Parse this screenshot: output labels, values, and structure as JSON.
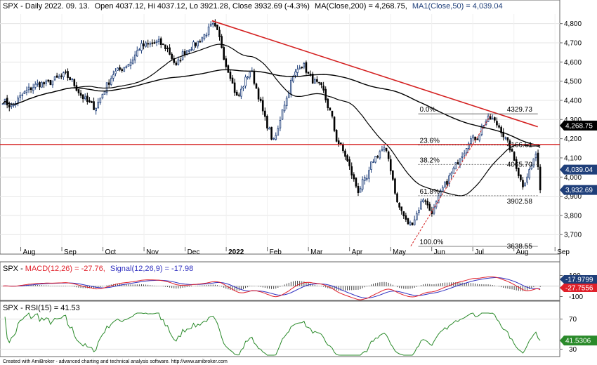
{
  "chart_data": [
    {
      "type": "candlestick",
      "symbol": "SPX",
      "header": {
        "prefix": "SPX - Daily 2022. 09. 13.",
        "ohlc": "Open 4037.12, Hi 4037.12, Lo 3921.28, Close 3932.69 (-4.3%)",
        "ma200": "MA(Close,200) = 4,268.75,",
        "ma50": "MA1(Close,50) = 4,039.04"
      },
      "x_labels": [
        "Aug",
        "Sep",
        "Oct",
        "Nov",
        "Dec",
        "2022",
        "Feb",
        "Mar",
        "Apr",
        "May",
        "Jun",
        "Jul",
        "Aug",
        "Sep"
      ],
      "y_ticks": [
        "4,800",
        "4,700",
        "4,600",
        "4,500",
        "4,400",
        "4,300",
        "4,200",
        "4,100",
        "4,000",
        "3,900",
        "3,800",
        "3,700"
      ],
      "ylim": [
        3635,
        4850
      ],
      "price_path": [
        [
          0,
          4400
        ],
        [
          6,
          4365
        ],
        [
          12,
          4420
        ],
        [
          18,
          4462
        ],
        [
          24,
          4485
        ],
        [
          30,
          4487
        ],
        [
          36,
          4513
        ],
        [
          42,
          4534
        ],
        [
          46,
          4505
        ],
        [
          52,
          4430
        ],
        [
          56,
          4395
        ],
        [
          62,
          4360
        ],
        [
          68,
          4455
        ],
        [
          74,
          4540
        ],
        [
          80,
          4568
        ],
        [
          86,
          4604
        ],
        [
          92,
          4682
        ],
        [
          98,
          4690
        ],
        [
          104,
          4705
        ],
        [
          110,
          4670
        ],
        [
          114,
          4610
        ],
        [
          116,
          4575
        ],
        [
          120,
          4640
        ],
        [
          124,
          4668
        ],
        [
          130,
          4700
        ],
        [
          136,
          4749
        ],
        [
          140,
          4793
        ],
        [
          143,
          4766
        ],
        [
          146,
          4700
        ],
        [
          149,
          4590
        ],
        [
          152,
          4540
        ],
        [
          154,
          4475
        ],
        [
          157,
          4410
        ],
        [
          160,
          4460
        ],
        [
          163,
          4520
        ],
        [
          166,
          4560
        ],
        [
          169,
          4480
        ],
        [
          172,
          4400
        ],
        [
          175,
          4310
        ],
        [
          178,
          4250
        ],
        [
          181,
          4180
        ],
        [
          184,
          4240
        ],
        [
          187,
          4360
        ],
        [
          190,
          4410
        ],
        [
          193,
          4500
        ],
        [
          196,
          4545
        ],
        [
          199,
          4590
        ],
        [
          202,
          4575
        ],
        [
          205,
          4525
        ],
        [
          208,
          4500
        ],
        [
          211,
          4480
        ],
        [
          214,
          4460
        ],
        [
          217,
          4380
        ],
        [
          220,
          4320
        ],
        [
          223,
          4200
        ],
        [
          226,
          4160
        ],
        [
          229,
          4115
        ],
        [
          232,
          4050
        ],
        [
          235,
          3980
        ],
        [
          238,
          3925
        ],
        [
          241,
          3975
        ],
        [
          244,
          3990
        ],
        [
          247,
          4080
        ],
        [
          250,
          4110
        ],
        [
          253,
          4140
        ],
        [
          255,
          4148
        ],
        [
          258,
          4100
        ],
        [
          261,
          3990
        ],
        [
          264,
          3860
        ],
        [
          267,
          3820
        ],
        [
          270,
          3765
        ],
        [
          273,
          3755
        ],
        [
          276,
          3790
        ],
        [
          279,
          3850
        ],
        [
          282,
          3900
        ],
        [
          285,
          3830
        ],
        [
          288,
          3820
        ],
        [
          291,
          3880
        ],
        [
          294,
          3935
        ],
        [
          297,
          3975
        ],
        [
          300,
          4015
        ],
        [
          303,
          4060
        ],
        [
          306,
          4110
        ],
        [
          309,
          4140
        ],
        [
          312,
          4195
        ],
        [
          315,
          4200
        ],
        [
          318,
          4210
        ],
        [
          321,
          4270
        ],
        [
          324,
          4300
        ],
        [
          327,
          4305
        ],
        [
          330,
          4280
        ],
        [
          333,
          4255
        ],
        [
          336,
          4200
        ],
        [
          339,
          4160
        ],
        [
          342,
          4090
        ],
        [
          344,
          4050
        ],
        [
          346,
          3990
        ],
        [
          348,
          3960
        ],
        [
          351,
          4010
        ],
        [
          354,
          4065
        ],
        [
          356,
          4115
        ],
        [
          358,
          4080
        ],
        [
          360,
          3932
        ]
      ],
      "ma200": "MA(Close,200)",
      "ma50": "MA1(Close,50)",
      "fibonacci": [
        {
          "ratio": "0.0%",
          "price": "4329.73"
        },
        {
          "ratio": "23.6%",
          "price": "4166.61"
        },
        {
          "ratio": "38.2%",
          "price": "4065.70"
        },
        {
          "ratio": "61.8%",
          "price": "3902.58"
        },
        {
          "ratio": "100.0%",
          "price": "3638.55"
        }
      ],
      "horizontal_line": 4170,
      "price_tags": [
        {
          "label": "4,268.75",
          "color": "#000000"
        },
        {
          "label": "4,039.04",
          "color": "#1f3f7a"
        },
        {
          "label": "3,932.69",
          "color": "#1f3f7a"
        }
      ]
    },
    {
      "type": "line",
      "name": "MACD",
      "title": {
        "prefix": "SPX - ",
        "macd": "MACD(12,26) = -27.76,",
        "signal": "Signal(12,26,9) = -17.98"
      },
      "y_ticks": [
        "100",
        "-100"
      ],
      "ylim": [
        -130,
        130
      ],
      "tags": [
        {
          "label": "-17.9799",
          "color": "#1f3f7a"
        },
        {
          "label": "-27.7556",
          "color": "#e0202a"
        }
      ]
    },
    {
      "type": "line",
      "name": "RSI",
      "title": "SPX - RSI(15) = 41.53",
      "y_ticks": [
        "70",
        "30"
      ],
      "ylim": [
        22,
        78
      ],
      "tags": [
        {
          "label": "41.5306",
          "color": "#2a8a2a"
        }
      ]
    }
  ],
  "footer": "Created with AmiBroker - advanced charting and technical analysis software. http://www.amibroker.com",
  "colors": {
    "bull": "#1f3f7a",
    "bear": "#000000",
    "ma200": "#000000",
    "ma50": "#000000",
    "trend": "#d42020",
    "macd": "#e0202a",
    "signal": "#3030c0",
    "rsi": "#2a8a2a"
  }
}
